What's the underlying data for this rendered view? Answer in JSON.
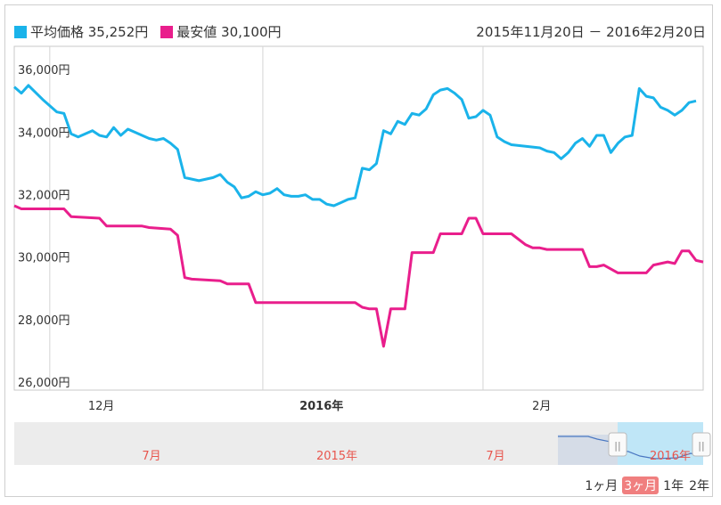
{
  "legend": {
    "items": [
      {
        "label": "平均価格 35,252円",
        "color": "#1ab3ea"
      },
      {
        "label": "最安値 30,100円",
        "color": "#e91e8c"
      }
    ],
    "date_range": "2015年11月20日 － 2016年2月20日"
  },
  "navigator": {
    "labels": [
      "7月",
      "2015年",
      "7月",
      "2016年"
    ],
    "handle_glyph": "||"
  },
  "zoom": {
    "buttons": [
      "1ヶ月",
      "3ヶ月",
      "1年",
      "2年"
    ],
    "active_index": 1
  },
  "chart_data": {
    "type": "line",
    "x_range": [
      "2015-11-20",
      "2016-02-20"
    ],
    "ylim": [
      26000,
      37000
    ],
    "y_ticks": [
      26000,
      28000,
      30000,
      32000,
      34000,
      36000
    ],
    "y_tick_labels": [
      "26,000円",
      "28,000円",
      "30,000円",
      "32,000円",
      "34,000円",
      "36,000円"
    ],
    "x_tick_labels": [
      {
        "date": "2015-12-01",
        "label": "12月",
        "bold": false
      },
      {
        "date": "2016-01-01",
        "label": "2016年",
        "bold": true
      },
      {
        "date": "2016-02-01",
        "label": "2月",
        "bold": false
      }
    ],
    "grid": "vertical",
    "legend_position": "top-left",
    "series": [
      {
        "name": "平均価格",
        "color": "#1ab3ea",
        "points": [
          [
            "2015-11-20",
            35700
          ],
          [
            "2015-11-21",
            35500
          ],
          [
            "2015-11-22",
            35750
          ],
          [
            "2015-11-24",
            35300
          ],
          [
            "2015-11-26",
            34900
          ],
          [
            "2015-11-27",
            34850
          ],
          [
            "2015-11-28",
            34200
          ],
          [
            "2015-11-29",
            34100
          ],
          [
            "2015-11-30",
            34200
          ],
          [
            "2015-12-01",
            34300
          ],
          [
            "2015-12-02",
            34150
          ],
          [
            "2015-12-03",
            34100
          ],
          [
            "2015-12-04",
            34400
          ],
          [
            "2015-12-05",
            34150
          ],
          [
            "2015-12-06",
            34350
          ],
          [
            "2015-12-07",
            34250
          ],
          [
            "2015-12-08",
            34150
          ],
          [
            "2015-12-09",
            34050
          ],
          [
            "2015-12-10",
            34000
          ],
          [
            "2015-12-11",
            34050
          ],
          [
            "2015-12-12",
            33900
          ],
          [
            "2015-12-13",
            33700
          ],
          [
            "2015-12-14",
            32800
          ],
          [
            "2015-12-15",
            32750
          ],
          [
            "2015-12-16",
            32700
          ],
          [
            "2015-12-17",
            32750
          ],
          [
            "2015-12-18",
            32800
          ],
          [
            "2015-12-19",
            32900
          ],
          [
            "2015-12-20",
            32650
          ],
          [
            "2015-12-21",
            32500
          ],
          [
            "2015-12-22",
            32150
          ],
          [
            "2015-12-23",
            32200
          ],
          [
            "2015-12-24",
            32350
          ],
          [
            "2015-12-25",
            32250
          ],
          [
            "2015-12-26",
            32300
          ],
          [
            "2015-12-27",
            32450
          ],
          [
            "2015-12-28",
            32250
          ],
          [
            "2015-12-29",
            32200
          ],
          [
            "2015-12-30",
            32200
          ],
          [
            "2015-12-31",
            32250
          ],
          [
            "2016-01-01",
            32100
          ],
          [
            "2016-01-02",
            32100
          ],
          [
            "2016-01-03",
            31950
          ],
          [
            "2016-01-04",
            31900
          ],
          [
            "2016-01-05",
            32000
          ],
          [
            "2016-01-06",
            32100
          ],
          [
            "2016-01-07",
            32150
          ],
          [
            "2016-01-08",
            33100
          ],
          [
            "2016-01-09",
            33050
          ],
          [
            "2016-01-10",
            33250
          ],
          [
            "2016-01-11",
            34300
          ],
          [
            "2016-01-12",
            34200
          ],
          [
            "2016-01-13",
            34600
          ],
          [
            "2016-01-14",
            34500
          ],
          [
            "2016-01-15",
            34850
          ],
          [
            "2016-01-16",
            34800
          ],
          [
            "2016-01-17",
            35000
          ],
          [
            "2016-01-18",
            35450
          ],
          [
            "2016-01-19",
            35600
          ],
          [
            "2016-01-20",
            35650
          ],
          [
            "2016-01-21",
            35500
          ],
          [
            "2016-01-22",
            35300
          ],
          [
            "2016-01-23",
            34700
          ],
          [
            "2016-01-24",
            34750
          ],
          [
            "2016-01-25",
            34950
          ],
          [
            "2016-01-26",
            34800
          ],
          [
            "2016-01-27",
            34100
          ],
          [
            "2016-01-28",
            33950
          ],
          [
            "2016-01-29",
            33850
          ],
          [
            "2016-01-31",
            33800
          ],
          [
            "2016-02-02",
            33750
          ],
          [
            "2016-02-03",
            33650
          ],
          [
            "2016-02-04",
            33600
          ],
          [
            "2016-02-05",
            33400
          ],
          [
            "2016-02-06",
            33600
          ],
          [
            "2016-02-07",
            33900
          ],
          [
            "2016-02-08",
            34050
          ],
          [
            "2016-02-09",
            33800
          ],
          [
            "2016-02-10",
            34150
          ],
          [
            "2016-02-11",
            34150
          ],
          [
            "2016-02-12",
            33600
          ],
          [
            "2016-02-13",
            33900
          ],
          [
            "2016-02-14",
            34100
          ],
          [
            "2016-02-15",
            34150
          ],
          [
            "2016-02-16",
            35650
          ],
          [
            "2016-02-17",
            35400
          ],
          [
            "2016-02-18",
            35350
          ],
          [
            "2016-02-19",
            35050
          ],
          [
            "2016-02-20",
            34950
          ],
          [
            "2016-02-21",
            34800
          ],
          [
            "2016-02-22",
            34950
          ],
          [
            "2016-02-23",
            35200
          ],
          [
            "2016-02-24",
            35252
          ]
        ]
      },
      {
        "name": "最安値",
        "color": "#e91e8c",
        "points": [
          [
            "2015-11-20",
            31900
          ],
          [
            "2015-11-21",
            31800
          ],
          [
            "2015-11-27",
            31800
          ],
          [
            "2015-11-28",
            31550
          ],
          [
            "2015-12-02",
            31500
          ],
          [
            "2015-12-03",
            31250
          ],
          [
            "2015-12-08",
            31250
          ],
          [
            "2015-12-09",
            31200
          ],
          [
            "2015-12-12",
            31150
          ],
          [
            "2015-12-13",
            30950
          ],
          [
            "2015-12-14",
            29600
          ],
          [
            "2015-12-15",
            29550
          ],
          [
            "2015-12-19",
            29500
          ],
          [
            "2015-12-20",
            29400
          ],
          [
            "2015-12-23",
            29400
          ],
          [
            "2015-12-24",
            28800
          ],
          [
            "2016-01-03",
            28800
          ],
          [
            "2016-01-04",
            28800
          ],
          [
            "2016-01-07",
            28800
          ],
          [
            "2016-01-08",
            28650
          ],
          [
            "2016-01-09",
            28600
          ],
          [
            "2016-01-10",
            28600
          ],
          [
            "2016-01-11",
            27400
          ],
          [
            "2016-01-12",
            28600
          ],
          [
            "2016-01-14",
            28600
          ],
          [
            "2016-01-15",
            30400
          ],
          [
            "2016-01-18",
            30400
          ],
          [
            "2016-01-19",
            31000
          ],
          [
            "2016-01-22",
            31000
          ],
          [
            "2016-01-23",
            31500
          ],
          [
            "2016-01-24",
            31500
          ],
          [
            "2016-01-25",
            31000
          ],
          [
            "2016-01-29",
            31000
          ],
          [
            "2016-01-31",
            30650
          ],
          [
            "2016-02-01",
            30550
          ],
          [
            "2016-02-02",
            30550
          ],
          [
            "2016-02-03",
            30500
          ],
          [
            "2016-02-08",
            30500
          ],
          [
            "2016-02-09",
            29950
          ],
          [
            "2016-02-10",
            29950
          ],
          [
            "2016-02-11",
            30000
          ],
          [
            "2016-02-13",
            29750
          ],
          [
            "2016-02-14",
            29750
          ],
          [
            "2016-02-17",
            29750
          ],
          [
            "2016-02-18",
            30000
          ],
          [
            "2016-02-19",
            30050
          ],
          [
            "2016-02-20",
            30100
          ],
          [
            "2016-02-21",
            30050
          ],
          [
            "2016-02-22",
            30450
          ],
          [
            "2016-02-23",
            30450
          ],
          [
            "2016-02-24",
            30150
          ],
          [
            "2016-02-25",
            30100
          ]
        ]
      }
    ]
  }
}
